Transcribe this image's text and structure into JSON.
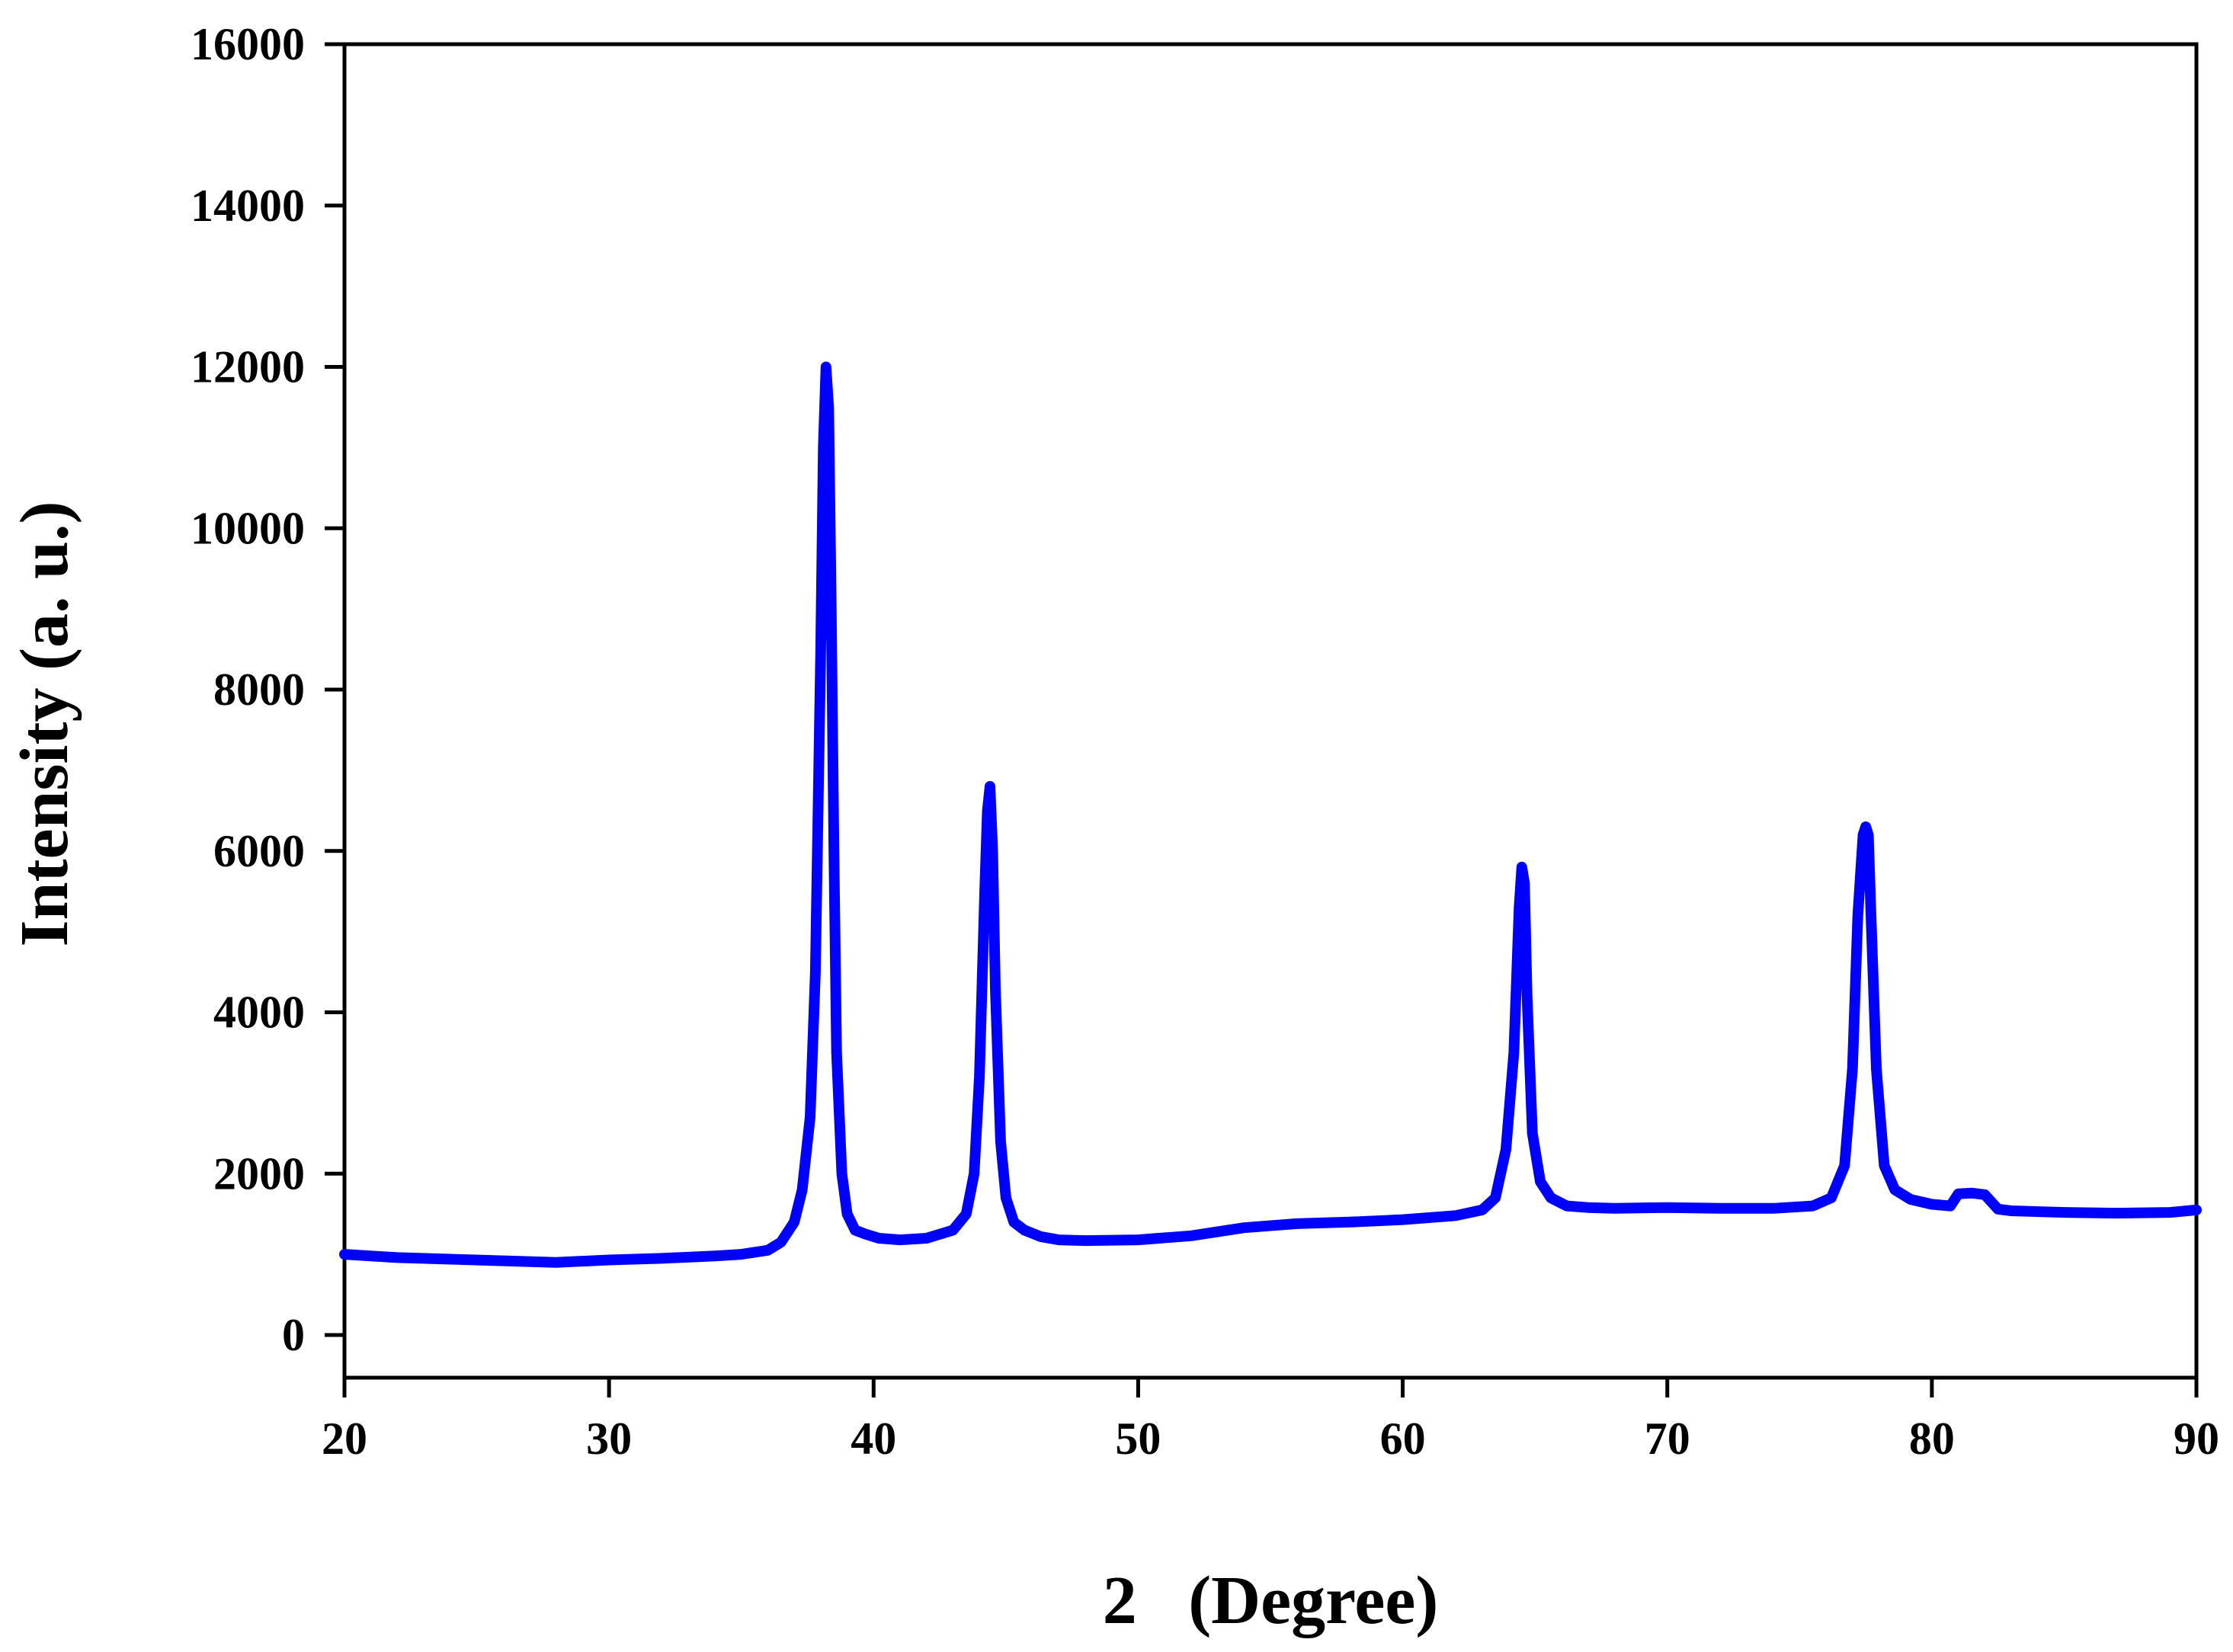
{
  "chart_data": {
    "type": "line",
    "title": "",
    "xlabel": "2   (Degree)",
    "ylabel": "Intensity (a. u.)",
    "xlim": [
      20,
      90
    ],
    "ylim": [
      0,
      16000
    ],
    "x_ticks": [
      20,
      30,
      40,
      50,
      60,
      70,
      80,
      90
    ],
    "y_ticks": [
      0,
      2000,
      4000,
      6000,
      8000,
      10000,
      12000,
      14000,
      16000
    ],
    "grid": false,
    "legend": "none",
    "series": [
      {
        "color": "#0000ff",
        "x": [
          20,
          22,
          24,
          26,
          28,
          30,
          32,
          34,
          35,
          36,
          36.5,
          37,
          37.3,
          37.6,
          37.8,
          38.0,
          38.1,
          38.2,
          38.3,
          38.4,
          38.5,
          38.6,
          38.8,
          39.0,
          39.3,
          39.7,
          40.2,
          41,
          42,
          43,
          43.5,
          43.8,
          44.0,
          44.2,
          44.3,
          44.4,
          44.5,
          44.6,
          44.8,
          45.0,
          45.3,
          45.7,
          46.3,
          47,
          48,
          50,
          52,
          54,
          56,
          58,
          60,
          62,
          63,
          63.5,
          63.9,
          64.2,
          64.4,
          64.5,
          64.6,
          64.7,
          64.9,
          65.2,
          65.6,
          66.2,
          67,
          68,
          70,
          72,
          74,
          75.5,
          76.2,
          76.7,
          77.0,
          77.2,
          77.4,
          77.5,
          77.6,
          77.7,
          77.9,
          78.2,
          78.6,
          79.2,
          80,
          80.7,
          81.0,
          81.5,
          82.0,
          82.5,
          83,
          85,
          87,
          89,
          90
        ],
        "y": [
          1000,
          960,
          940,
          920,
          900,
          930,
          950,
          980,
          1000,
          1050,
          1150,
          1400,
          1800,
          2700,
          4500,
          8500,
          11000,
          12000,
          11500,
          9000,
          6000,
          3500,
          2000,
          1500,
          1300,
          1250,
          1200,
          1180,
          1200,
          1300,
          1500,
          2000,
          3200,
          5500,
          6500,
          6800,
          6000,
          4300,
          2400,
          1700,
          1400,
          1300,
          1220,
          1180,
          1170,
          1180,
          1230,
          1330,
          1380,
          1400,
          1430,
          1480,
          1550,
          1700,
          2300,
          3500,
          5300,
          5800,
          5600,
          4200,
          2500,
          1900,
          1700,
          1600,
          1580,
          1570,
          1580,
          1570,
          1570,
          1600,
          1700,
          2100,
          3300,
          5200,
          6200,
          6300,
          6200,
          5200,
          3300,
          2100,
          1800,
          1680,
          1620,
          1600,
          1750,
          1760,
          1740,
          1560,
          1540,
          1520,
          1510,
          1520,
          1550
        ]
      }
    ]
  }
}
